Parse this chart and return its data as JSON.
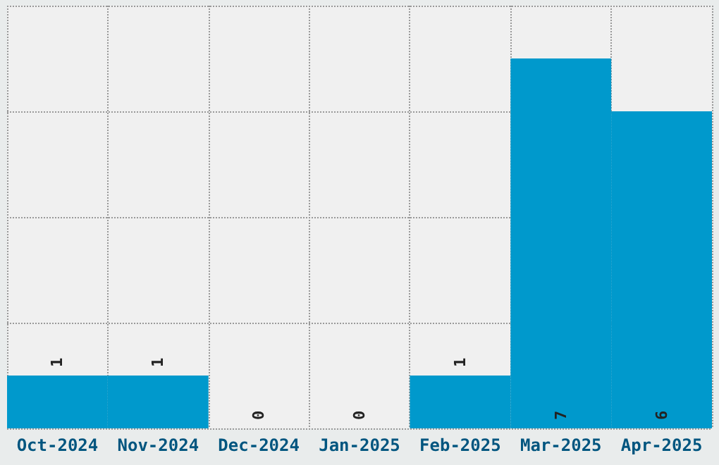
{
  "chart_data": {
    "type": "bar",
    "categories": [
      "Oct-2024",
      "Nov-2024",
      "Dec-2024",
      "Jan-2025",
      "Feb-2025",
      "Mar-2025",
      "Apr-2025"
    ],
    "values": [
      1,
      1,
      0,
      0,
      1,
      7,
      6
    ],
    "color": "#0099cc",
    "ylim": [
      0,
      8
    ],
    "yticks": [
      {
        "value": 0,
        "label": null
      },
      {
        "value": 2,
        "label": null
      },
      {
        "value": 4,
        "label": null
      },
      {
        "value": 6,
        "label": null
      },
      {
        "value": 8,
        "label": null
      }
    ],
    "tick_labels": "x",
    "grid": true,
    "data_labels": true
  }
}
